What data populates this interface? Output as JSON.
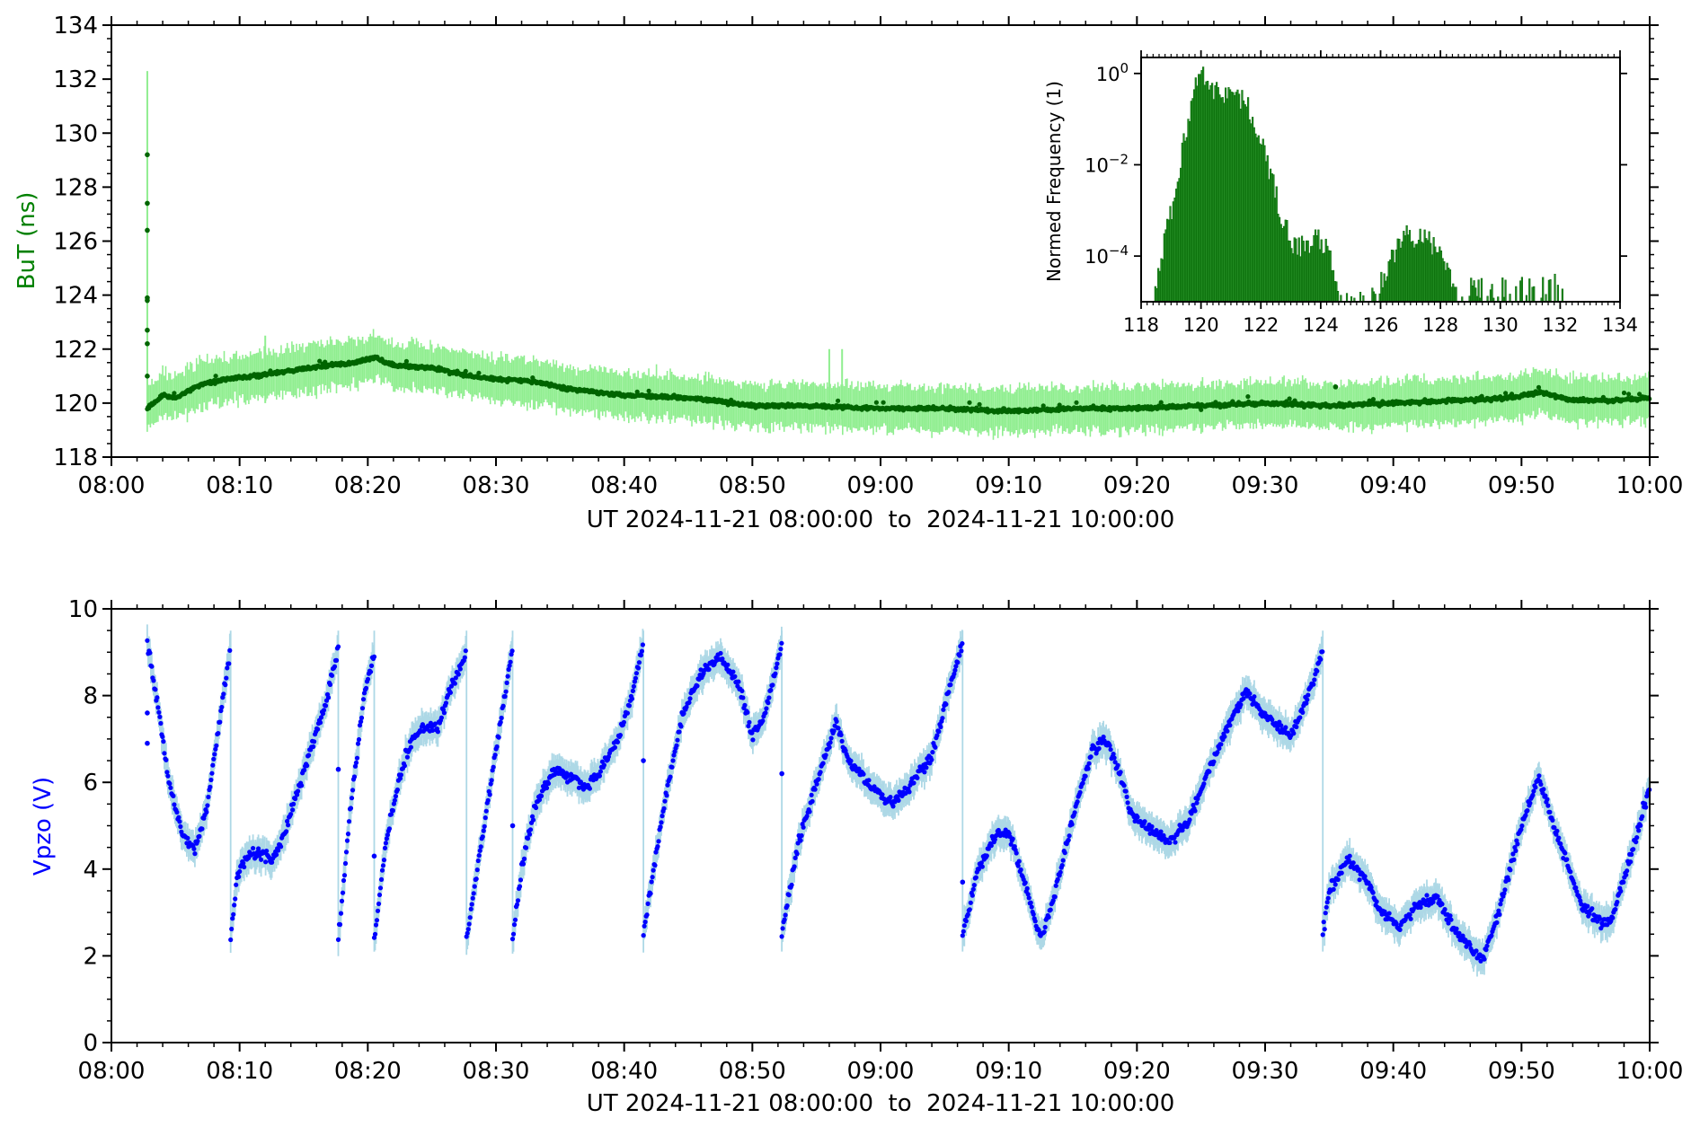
{
  "colors": {
    "top_points": "#006400",
    "top_band": "#90ee90",
    "hist_fill": "#228b22",
    "hist_edge": "#006400",
    "bottom_points": "#0000ff",
    "bottom_band": "#add8e6",
    "top_ylabel": "#008000",
    "bottom_ylabel": "#0000ff"
  },
  "chart_data": [
    {
      "type": "scatter",
      "panel": "top",
      "ylabel": "BuT (ns)",
      "xlabel": "UT 2024-11-21 08:00:00  to  2024-11-21 10:00:00",
      "xlim": [
        "08:00",
        "10:00"
      ],
      "ylim": [
        118,
        134
      ],
      "xticks": [
        "08:00",
        "08:10",
        "08:20",
        "08:30",
        "08:40",
        "08:50",
        "09:00",
        "09:10",
        "09:20",
        "09:30",
        "09:40",
        "09:50",
        "10:00"
      ],
      "yticks": [
        "118",
        "120",
        "122",
        "124",
        "126",
        "128",
        "130",
        "132",
        "134"
      ],
      "grid": false,
      "series": [
        {
          "role": "data points with uncertainty band",
          "trend": [
            [
              "08:02.8",
              119.8
            ],
            [
              "08:04",
              120.3
            ],
            [
              "08:05",
              120.2
            ],
            [
              "08:07",
              120.7
            ],
            [
              "08:09",
              120.9
            ],
            [
              "08:11",
              121.0
            ],
            [
              "08:14",
              121.2
            ],
            [
              "08:17",
              121.4
            ],
            [
              "08:19",
              121.5
            ],
            [
              "08:20.5",
              121.7
            ],
            [
              "08:22",
              121.4
            ],
            [
              "08:25",
              121.3
            ],
            [
              "08:28",
              121.0
            ],
            [
              "08:30",
              120.9
            ],
            [
              "08:33",
              120.8
            ],
            [
              "08:36",
              120.5
            ],
            [
              "08:40",
              120.3
            ],
            [
              "08:45",
              120.2
            ],
            [
              "08:50",
              119.9
            ],
            [
              "08:55",
              119.9
            ],
            [
              "09:00",
              119.8
            ],
            [
              "09:05",
              119.8
            ],
            [
              "09:10",
              119.7
            ],
            [
              "09:15",
              119.8
            ],
            [
              "09:20",
              119.8
            ],
            [
              "09:25",
              119.9
            ],
            [
              "09:30",
              120.0
            ],
            [
              "09:35",
              119.9
            ],
            [
              "09:40",
              120.0
            ],
            [
              "09:45",
              120.1
            ],
            [
              "09:49",
              120.2
            ],
            [
              "09:51.5",
              120.4
            ],
            [
              "09:54",
              120.1
            ],
            [
              "09:57",
              120.1
            ],
            [
              "10:00",
              120.2
            ]
          ],
          "spikes": [
            [
              "08:02.8",
              129.2
            ],
            [
              "08:02.8",
              127.4
            ],
            [
              "08:02.8",
              126.4
            ],
            [
              "08:02.8",
              123.9
            ],
            [
              "08:02.8",
              123.8
            ],
            [
              "08:02.8",
              122.7
            ],
            [
              "08:02.8",
              122.2
            ],
            [
              "08:02.8",
              121.0
            ],
            [
              "09:35.5",
              120.6
            ]
          ],
          "band_halfwidth": 0.7
        }
      ]
    },
    {
      "type": "bar",
      "panel": "inset",
      "ylabel": "Normed Frequency (1)",
      "yscale": "log",
      "xlim": [
        118,
        134
      ],
      "ylim_exp": [
        -5,
        0.35
      ],
      "xticks": [
        "118",
        "120",
        "122",
        "124",
        "126",
        "128",
        "130",
        "132",
        "134"
      ],
      "yticks": [
        {
          "base": "10",
          "exp": "0",
          "value": 1
        },
        {
          "base": "10",
          "exp": "−2",
          "value": 0.01
        },
        {
          "base": "10",
          "exp": "−4",
          "value": 0.0001
        }
      ],
      "hist_profile": [
        [
          118.4,
          1e-05
        ],
        [
          118.6,
          5e-05
        ],
        [
          118.8,
          0.0003
        ],
        [
          119.0,
          0.001
        ],
        [
          119.2,
          0.005
        ],
        [
          119.4,
          0.03
        ],
        [
          119.6,
          0.15
        ],
        [
          119.8,
          0.5
        ],
        [
          120.0,
          1.5
        ],
        [
          120.2,
          0.6
        ],
        [
          120.4,
          0.45
        ],
        [
          120.6,
          0.35
        ],
        [
          120.8,
          0.4
        ],
        [
          121.0,
          0.45
        ],
        [
          121.2,
          0.3
        ],
        [
          121.4,
          0.25
        ],
        [
          121.6,
          0.15
        ],
        [
          121.8,
          0.07
        ],
        [
          122.0,
          0.03
        ],
        [
          122.2,
          0.01
        ],
        [
          122.4,
          0.004
        ],
        [
          122.6,
          0.001
        ],
        [
          122.8,
          0.0005
        ],
        [
          123.0,
          0.0002
        ],
        [
          123.4,
          0.00015
        ],
        [
          123.8,
          0.00025
        ],
        [
          124.2,
          0.00015
        ],
        [
          124.4,
          4e-05
        ],
        [
          124.6,
          1e-05
        ],
        [
          125.0,
          1e-05
        ],
        [
          125.6,
          1e-05
        ],
        [
          126.0,
          3e-05
        ],
        [
          126.4,
          0.0001
        ],
        [
          126.8,
          0.0003
        ],
        [
          127.2,
          0.00025
        ],
        [
          127.6,
          0.0002
        ],
        [
          128.0,
          0.0001
        ],
        [
          128.4,
          3e-05
        ],
        [
          128.8,
          2e-05
        ],
        [
          129.4,
          2e-05
        ],
        [
          130.0,
          2e-05
        ],
        [
          130.8,
          2e-05
        ],
        [
          131.4,
          2e-05
        ],
        [
          132.0,
          3e-05
        ],
        [
          132.3,
          1e-05
        ]
      ]
    },
    {
      "type": "scatter",
      "panel": "bottom",
      "ylabel": "Vpzo (V)",
      "xlabel": "UT 2024-11-21 08:00:00  to  2024-11-21 10:00:00",
      "xlim": [
        "08:00",
        "10:00"
      ],
      "ylim": [
        0,
        10
      ],
      "xticks": [
        "08:00",
        "08:10",
        "08:20",
        "08:30",
        "08:40",
        "08:50",
        "09:00",
        "09:10",
        "09:20",
        "09:30",
        "09:40",
        "09:50",
        "10:00"
      ],
      "yticks": [
        "0",
        "2",
        "4",
        "6",
        "8",
        "10"
      ],
      "grid": false,
      "segments": [
        [
          [
            "08:02.8",
            9.2
          ],
          [
            "08:03.5",
            8.0
          ],
          [
            "08:04.5",
            6.0
          ],
          [
            "08:05.5",
            4.8
          ],
          [
            "08:06.5",
            4.4
          ],
          [
            "08:07.5",
            5.5
          ],
          [
            "08:08.5",
            7.5
          ],
          [
            "08:09.3",
            9.1
          ]
        ],
        [
          [
            "08:09.3",
            2.4
          ],
          [
            "08:09.8",
            3.8
          ],
          [
            "08:10.5",
            4.3
          ],
          [
            "08:11.5",
            4.4
          ],
          [
            "08:12.5",
            4.2
          ],
          [
            "08:13.5",
            4.8
          ],
          [
            "08:14.5",
            5.8
          ],
          [
            "08:15.5",
            6.7
          ],
          [
            "08:16.5",
            7.6
          ],
          [
            "08:17.7",
            9.1
          ]
        ],
        [
          [
            "08:17.7",
            2.4
          ],
          [
            "08:18.7",
            5.5
          ],
          [
            "08:19.7",
            8.0
          ],
          [
            "08:20.5",
            9.0
          ]
        ],
        [
          [
            "08:20.5",
            2.4
          ],
          [
            "08:21.5",
            4.8
          ],
          [
            "08:22.5",
            6.2
          ],
          [
            "08:23.5",
            7.0
          ],
          [
            "08:24.5",
            7.3
          ],
          [
            "08:25.5",
            7.3
          ],
          [
            "08:26.5",
            8.2
          ],
          [
            "08:27.7",
            9.0
          ]
        ],
        [
          [
            "08:27.7",
            2.4
          ],
          [
            "08:29.5",
            5.8
          ],
          [
            "08:31.3",
            9.1
          ]
        ],
        [
          [
            "08:31.3",
            2.4
          ],
          [
            "08:32",
            4.0
          ],
          [
            "08:33",
            5.4
          ],
          [
            "08:34.5",
            6.3
          ],
          [
            "08:36",
            6.1
          ],
          [
            "08:37",
            5.9
          ],
          [
            "08:38",
            6.2
          ],
          [
            "08:39.5",
            7.0
          ],
          [
            "08:40.5",
            7.9
          ],
          [
            "08:41.5",
            9.2
          ]
        ],
        [
          [
            "08:41.5",
            2.5
          ],
          [
            "08:43",
            5.3
          ],
          [
            "08:44.5",
            7.5
          ],
          [
            "08:46",
            8.5
          ],
          [
            "08:47.5",
            8.9
          ],
          [
            "08:49",
            8.2
          ],
          [
            "08:50",
            7.1
          ],
          [
            "08:51",
            7.6
          ],
          [
            "08:52.3",
            9.2
          ]
        ],
        [
          [
            "08:52.3",
            2.5
          ],
          [
            "08:53.5",
            4.5
          ],
          [
            "08:55",
            6.0
          ],
          [
            "08:56.5",
            7.4
          ],
          [
            "08:57.5",
            6.5
          ],
          [
            "08:59",
            6.0
          ],
          [
            "09:00",
            5.7
          ],
          [
            "09:01",
            5.5
          ],
          [
            "09:02",
            5.8
          ],
          [
            "09:04",
            6.6
          ],
          [
            "09:05.5",
            8.3
          ],
          [
            "09:06.4",
            9.2
          ]
        ],
        [
          [
            "09:06.4",
            2.5
          ],
          [
            "09:07.5",
            3.9
          ],
          [
            "09:09",
            4.8
          ],
          [
            "09:10",
            4.9
          ],
          [
            "09:11",
            3.9
          ],
          [
            "09:12.5",
            2.4
          ],
          [
            "09:13.5",
            3.3
          ],
          [
            "09:15",
            5.2
          ],
          [
            "09:16.5",
            6.7
          ],
          [
            "09:17.5",
            7.0
          ],
          [
            "09:18.5",
            6.4
          ],
          [
            "09:19.5",
            5.3
          ],
          [
            "09:21",
            4.9
          ],
          [
            "09:22.5",
            4.6
          ],
          [
            "09:24",
            5.1
          ],
          [
            "09:25.5",
            6.2
          ],
          [
            "09:27",
            7.2
          ],
          [
            "09:28.5",
            8.1
          ],
          [
            "09:29.5",
            7.7
          ],
          [
            "09:30.5",
            7.4
          ],
          [
            "09:32",
            7.1
          ],
          [
            "09:33.5",
            8.1
          ],
          [
            "09:34.5",
            9.1
          ]
        ],
        [
          [
            "09:34.5",
            2.5
          ],
          [
            "09:35",
            3.5
          ],
          [
            "09:36.5",
            4.2
          ],
          [
            "09:38",
            3.7
          ],
          [
            "09:39",
            3.0
          ],
          [
            "09:40.5",
            2.7
          ],
          [
            "09:42",
            3.2
          ],
          [
            "09:43.5",
            3.3
          ],
          [
            "09:45",
            2.5
          ],
          [
            "09:47",
            1.9
          ],
          [
            "09:48.5",
            3.3
          ],
          [
            "09:50",
            5.0
          ],
          [
            "09:51.3",
            6.1
          ],
          [
            "09:53",
            4.6
          ],
          [
            "09:54.5",
            3.3
          ],
          [
            "09:56",
            2.8
          ],
          [
            "09:57",
            2.8
          ],
          [
            "09:58.5",
            4.3
          ],
          [
            "10:00",
            5.9
          ]
        ]
      ],
      "isolated_points": [
        [
          "08:02.8",
          6.9
        ],
        [
          "08:02.8",
          7.6
        ],
        [
          "08:17.7",
          6.3
        ],
        [
          "08:20.5",
          4.3
        ],
        [
          "08:31.3",
          5.0
        ],
        [
          "08:41.5",
          6.5
        ],
        [
          "08:52.3",
          6.2
        ],
        [
          "09:06.4",
          3.7
        ]
      ],
      "band_halfwidth": 0.3
    }
  ]
}
